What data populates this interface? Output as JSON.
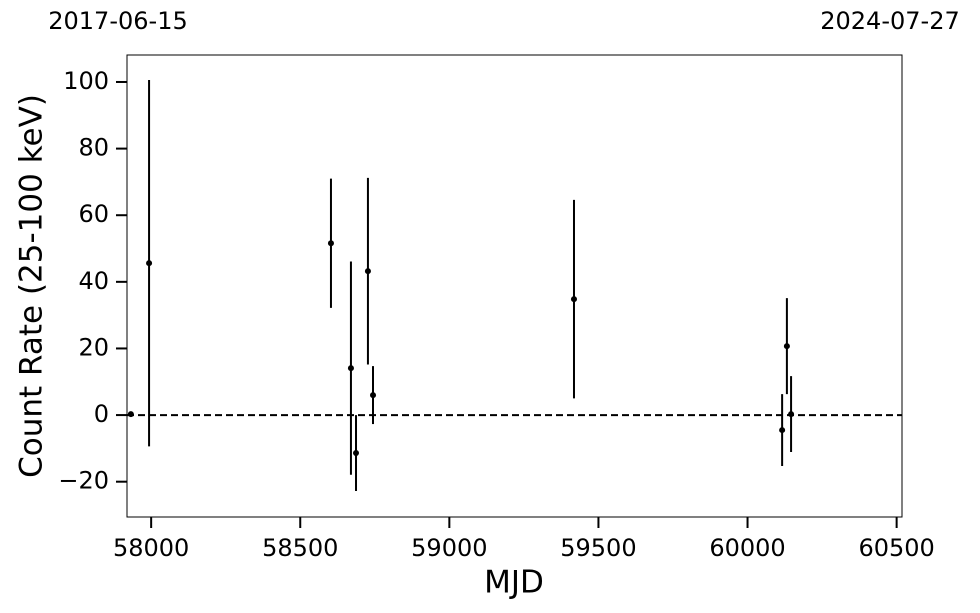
{
  "chart_data": {
    "type": "errorbar",
    "x_label": "MJD",
    "y_label": "Count Rate (25-100 keV)",
    "date_labels": [
      "2017-06-15",
      "2024-07-27"
    ],
    "x": [
      57932,
      57993,
      58603,
      58670,
      58687,
      58727,
      58744,
      59418,
      60116,
      60132,
      60146
    ],
    "values": [
      0.3,
      45.6,
      51.6,
      14.1,
      -11.4,
      43.2,
      6.0,
      34.8,
      -4.5,
      20.7,
      0.3
    ],
    "errors": [
      0.5,
      55,
      19.4,
      32,
      11.4,
      28,
      8.7,
      29.8,
      10.8,
      14.4,
      11.4
    ],
    "color": "#000000",
    "hline": 0,
    "xlim": [
      57919,
      60518
    ],
    "ylim": [
      -30.6,
      108.1
    ],
    "xticks": [
      58000,
      58500,
      59000,
      59500,
      60000,
      60500
    ],
    "yticks": [
      {
        "value": -20,
        "label": "−20"
      },
      0,
      20,
      40,
      60,
      80,
      100
    ]
  }
}
